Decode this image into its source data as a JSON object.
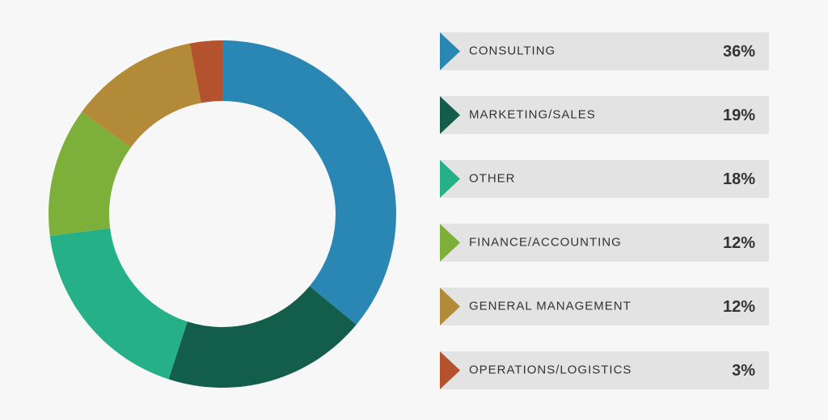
{
  "chart_data": {
    "type": "donut",
    "categories": [
      "CONSULTING",
      "MARKETING/SALES",
      "OTHER",
      "FINANCE/ACCOUNTING",
      "GENERAL MANAGEMENT",
      "OPERATIONS/LOGISTICS"
    ],
    "values": [
      36,
      19,
      18,
      12,
      12,
      3
    ],
    "value_labels": [
      "36%",
      "19%",
      "18%",
      "12%",
      "12%",
      "3%"
    ],
    "colors": [
      "#2a86b3",
      "#135e4b",
      "#25b087",
      "#7db03a",
      "#b38a37",
      "#b4522e"
    ]
  }
}
